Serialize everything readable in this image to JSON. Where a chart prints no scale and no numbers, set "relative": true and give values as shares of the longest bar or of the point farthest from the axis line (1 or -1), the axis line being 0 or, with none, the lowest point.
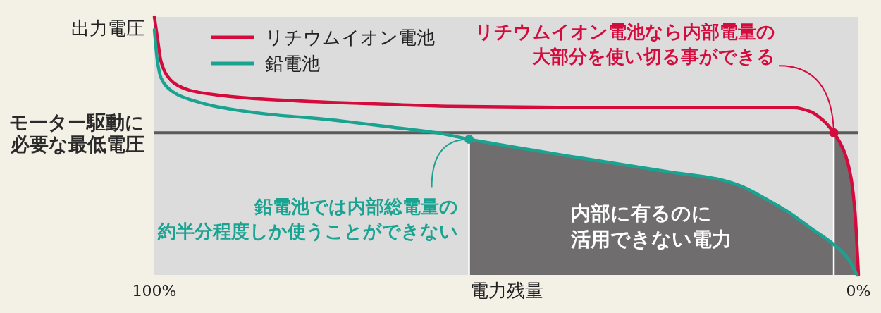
{
  "chart_data": {
    "type": "line",
    "xlabel": "電力残量",
    "ylabel": "出力電圧",
    "xlim": [
      100,
      0
    ],
    "xticks": [
      {
        "value": 100,
        "label": "100%"
      },
      {
        "value": 0,
        "label": "0%"
      }
    ],
    "relative": true,
    "legend": "top left",
    "series": [
      {
        "name": "リチウムイオン電池",
        "color": "#d50b3e",
        "x": [
          100,
          99.57,
          99.07,
          98.23,
          96.9,
          94.9,
          90.9,
          84.2,
          74.9,
          65.2,
          57.9,
          39.8,
          19.8,
          9.2,
          6.8,
          5.1,
          3.5,
          2.1,
          1.1,
          0.5,
          0.2,
          0
        ],
        "values": [
          1,
          0.92,
          0.829,
          0.774,
          0.738,
          0.715,
          0.697,
          0.681,
          0.669,
          0.66,
          0.654,
          0.649,
          0.648,
          0.648,
          0.633,
          0.601,
          0.551,
          0.483,
          0.383,
          0.246,
          0.109,
          0
        ]
      },
      {
        "name": "鉛電池",
        "color": "#1ba392",
        "x": [
          100,
          99.57,
          99.07,
          98.23,
          96.57,
          94.22,
          90.89,
          84.2,
          74.9,
          65.2,
          59.9,
          55.3,
          39.8,
          26.8,
          20.2,
          16.8,
          13.5,
          10.1,
          6.8,
          3.5,
          1.5,
          0.2
        ],
        "values": [
          0.95,
          0.829,
          0.765,
          0.729,
          0.697,
          0.674,
          0.651,
          0.624,
          0.601,
          0.569,
          0.551,
          0.526,
          0.455,
          0.399,
          0.373,
          0.346,
          0.3,
          0.246,
          0.182,
          0.118,
          0.064,
          0
        ]
      },
      {
        "color": "#6f6d6d",
        "type": "area",
        "x": [
          55.3,
          39.8,
          26.8,
          20.2,
          16.8,
          13.5,
          10.1,
          6.8,
          3.5
        ],
        "values": [
          0.526,
          0.455,
          0.399,
          0.373,
          0.346,
          0.3,
          0.246,
          0.182,
          0.118
        ]
      },
      {
        "color": "#6f6d6d",
        "type": "area",
        "x": [
          3.5,
          2.1,
          1.1,
          0.5,
          0.2,
          0
        ],
        "values": [
          0.551,
          0.483,
          0.383,
          0.246,
          0.109,
          0
        ]
      }
    ],
    "ref_lines": [
      {
        "axis": "y",
        "value": 0.551,
        "label": "モーター駆動に必要な最低電圧",
        "color": "#5a5a5a"
      }
    ],
    "annotations": [
      {
        "text": "リチウムイオン電池なら内部電量の大部分を使い切る事ができる",
        "x": 3.5,
        "y": 0.551
      },
      {
        "text": "鉛電池では内部総電量の約半分程度しか使うことができない",
        "x": 55.3,
        "y": 0.526
      },
      "内部に有るのに活用できない電力"
    ]
  }
}
